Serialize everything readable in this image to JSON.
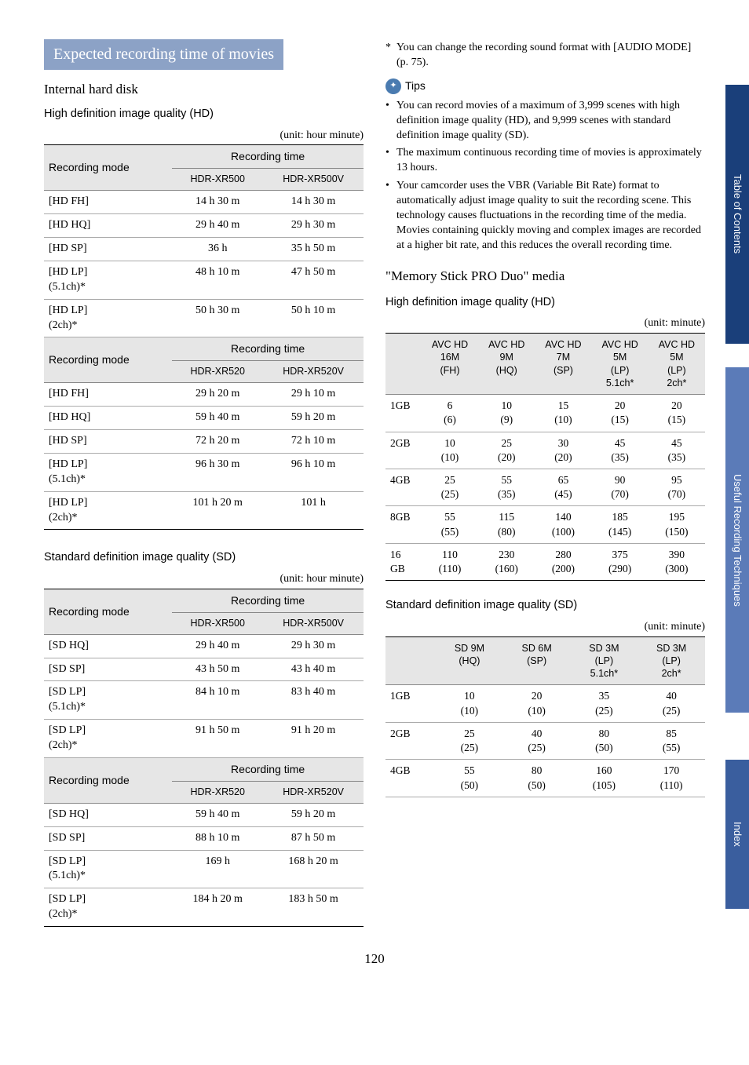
{
  "pageNumber": "120",
  "sideTabs": {
    "toc": "Table of Contents",
    "techniques": "Useful Recording Techniques",
    "index": "Index"
  },
  "sectionTitle": "Expected recording time of movies",
  "internal": {
    "heading": "Internal hard disk",
    "hd": {
      "label": "High definition image quality (HD)",
      "unit": "(unit: hour minute)",
      "modeHeader": "Recording mode",
      "timeHeader": "Recording time",
      "models500": [
        "HDR-XR500",
        "HDR-XR500V"
      ],
      "rows500": [
        [
          "[HD FH]",
          "14 h 30 m",
          "14 h 30 m"
        ],
        [
          "[HD HQ]",
          "29 h 40 m",
          "29 h 30 m"
        ],
        [
          "[HD SP]",
          "36 h",
          "35 h 50 m"
        ],
        [
          "[HD LP] (5.1ch)*",
          "48 h 10 m",
          "47 h 50 m"
        ],
        [
          "[HD LP] (2ch)*",
          "50 h 30 m",
          "50 h 10 m"
        ]
      ],
      "models520": [
        "HDR-XR520",
        "HDR-XR520V"
      ],
      "rows520": [
        [
          "[HD FH]",
          "29 h 20 m",
          "29 h 10 m"
        ],
        [
          "[HD HQ]",
          "59 h 40 m",
          "59 h 20 m"
        ],
        [
          "[HD SP]",
          "72 h 20 m",
          "72 h 10 m"
        ],
        [
          "[HD LP] (5.1ch)*",
          "96 h 30 m",
          "96 h 10 m"
        ],
        [
          "[HD LP] (2ch)*",
          "101 h 20 m",
          "101 h"
        ]
      ]
    },
    "sd": {
      "label": "Standard definition image quality (SD)",
      "unit": "(unit: hour minute)",
      "modeHeader": "Recording mode",
      "timeHeader": "Recording time",
      "models500": [
        "HDR-XR500",
        "HDR-XR500V"
      ],
      "rows500": [
        [
          "[SD HQ]",
          "29 h 40 m",
          "29 h 30 m"
        ],
        [
          "[SD SP]",
          "43 h 50 m",
          "43 h 40 m"
        ],
        [
          "[SD LP] (5.1ch)*",
          "84 h 10 m",
          "83 h 40 m"
        ],
        [
          "[SD LP] (2ch)*",
          "91 h 50 m",
          "91 h 20 m"
        ]
      ],
      "models520": [
        "HDR-XR520",
        "HDR-XR520V"
      ],
      "rows520": [
        [
          "[SD HQ]",
          "59 h 40 m",
          "59 h 20 m"
        ],
        [
          "[SD SP]",
          "88 h 10 m",
          "87 h 50 m"
        ],
        [
          "[SD LP] (5.1ch)*",
          "169 h",
          "168 h 20 m"
        ],
        [
          "[SD LP] (2ch)*",
          "184 h 20 m",
          "183 h 50 m"
        ]
      ]
    }
  },
  "footnote": "You can change the recording sound format with [AUDIO MODE] (p. 75).",
  "tipsLabel": "Tips",
  "tips": [
    "You can record movies of a maximum of 3,999 scenes with high definition image quality (HD), and 9,999 scenes with standard definition image quality (SD).",
    "The maximum continuous recording time of movies is approximately 13 hours.",
    "Your camcorder uses the VBR (Variable Bit Rate) format to automatically adjust image quality to suit the recording scene. This technology causes fluctuations in the recording time of the media. Movies containing quickly moving and complex images are recorded at a higher bit rate, and this reduces the overall recording time."
  ],
  "memorystick": {
    "title": "\"Memory Stick PRO Duo\" media",
    "hd": {
      "label": "High definition image quality (HD)",
      "unit": "(unit: minute)",
      "headers": [
        "",
        "AVC HD 16M (FH)",
        "AVC HD 9M (HQ)",
        "AVC HD 7M (SP)",
        "AVC HD 5M (LP) 5.1ch*",
        "AVC HD 5M (LP) 2ch*"
      ],
      "rows": [
        [
          "1GB",
          "6 (6)",
          "10 (9)",
          "15 (10)",
          "20 (15)",
          "20 (15)"
        ],
        [
          "2GB",
          "10 (10)",
          "25 (20)",
          "30 (20)",
          "45 (35)",
          "45 (35)"
        ],
        [
          "4GB",
          "25 (25)",
          "55 (35)",
          "65 (45)",
          "90 (70)",
          "95 (70)"
        ],
        [
          "8GB",
          "55 (55)",
          "115 (80)",
          "140 (100)",
          "185 (145)",
          "195 (150)"
        ],
        [
          "16 GB",
          "110 (110)",
          "230 (160)",
          "280 (200)",
          "375 (290)",
          "390 (300)"
        ]
      ]
    },
    "sd": {
      "label": "Standard definition image quality (SD)",
      "unit": "(unit: minute)",
      "headers": [
        "",
        "SD 9M (HQ)",
        "SD 6M (SP)",
        "SD 3M (LP) 5.1ch*",
        "SD 3M (LP) 2ch*"
      ],
      "rows": [
        [
          "1GB",
          "10 (10)",
          "20 (10)",
          "35 (25)",
          "40 (25)"
        ],
        [
          "2GB",
          "25 (25)",
          "40 (25)",
          "80 (50)",
          "85 (55)"
        ],
        [
          "4GB",
          "55 (50)",
          "80 (50)",
          "160 (105)",
          "170 (110)"
        ]
      ]
    }
  }
}
